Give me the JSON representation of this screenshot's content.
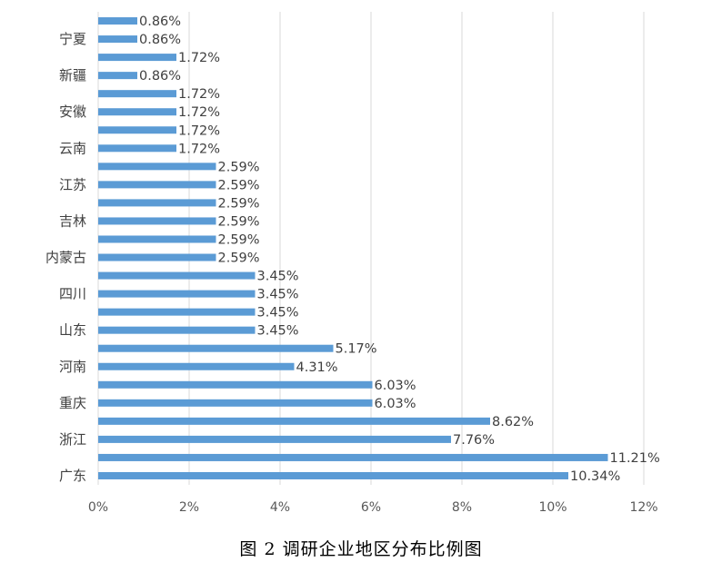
{
  "chart_data": {
    "type": "bar",
    "orientation": "horizontal",
    "categories": [
      "广东",
      "",
      "浙江",
      "",
      "重庆",
      "",
      "河南",
      "",
      "山东",
      "",
      "四川",
      "",
      "内蒙古",
      "",
      "吉林",
      "",
      "江苏",
      "",
      "云南",
      "",
      "安徽",
      "",
      "新疆",
      "",
      "宁夏",
      ""
    ],
    "values": [
      10.34,
      11.21,
      7.76,
      8.62,
      6.03,
      6.03,
      4.31,
      5.17,
      3.45,
      3.45,
      3.45,
      3.45,
      2.59,
      2.59,
      2.59,
      2.59,
      2.59,
      2.59,
      1.72,
      1.72,
      1.72,
      1.72,
      0.86,
      1.72,
      0.86,
      0.86
    ],
    "data_labels": [
      "10.34%",
      "11.21%",
      "7.76%",
      "8.62%",
      "6.03%",
      "6.03%",
      "4.31%",
      "5.17%",
      "3.45%",
      "3.45%",
      "3.45%",
      "3.45%",
      "2.59%",
      "2.59%",
      "2.59%",
      "2.59%",
      "2.59%",
      "2.59%",
      "1.72%",
      "1.72%",
      "1.72%",
      "1.72%",
      "0.86%",
      "1.72%",
      "0.86%",
      "0.86%"
    ],
    "xlim": [
      0,
      12
    ],
    "xticks": [
      0,
      2,
      4,
      6,
      8,
      10,
      12
    ],
    "xtick_labels": [
      "0%",
      "2%",
      "4%",
      "6%",
      "8%",
      "10%",
      "12%"
    ],
    "grid": true,
    "bar_color": "#5B9BD5"
  },
  "caption": "图 2    调研企业地区分布比例图"
}
